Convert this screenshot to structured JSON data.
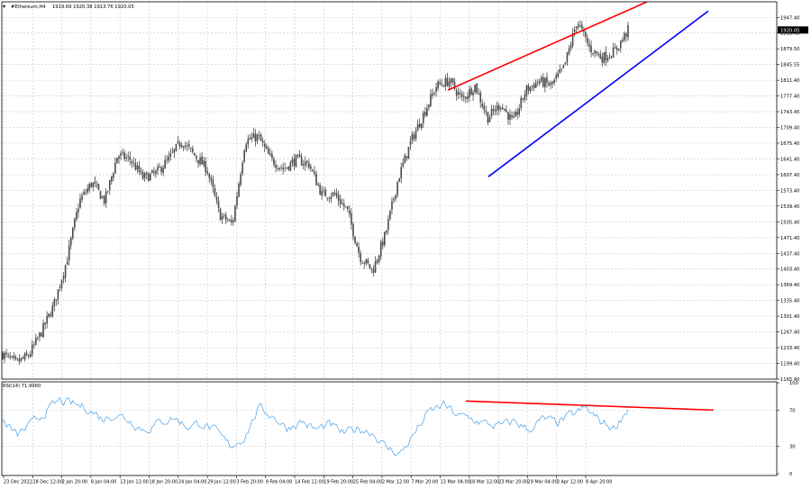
{
  "header": {
    "symbol_label": "#Ethereum,H4",
    "ohlc_label": "1919.69 1920.38 1913.76 1920.05"
  },
  "rsi_label": "RSI(14) 71.9960",
  "current_price_label": "1920.05",
  "colors": {
    "background": "#ffffff",
    "grid": "#c8c8c8",
    "candles": "#4a4a4a",
    "rsi_line": "#4aa0e8",
    "resistance_line": "#ff0000",
    "support_line": "#0000ff",
    "rsi_trendline": "#ff0000",
    "price_tag": "#000000"
  },
  "chart_data": [
    {
      "type": "candlestick",
      "title": "",
      "instrument": "#Ethereum",
      "timeframe": "H4",
      "ylim": [
        1165.4,
        1981.0
      ],
      "y_ticks": [
        "1947.40",
        "1913.45",
        "1879.50",
        "1845.55",
        "1811.40",
        "1777.40",
        "1743.45",
        "1709.40",
        "1675.40",
        "1641.40",
        "1607.40",
        "1573.40",
        "1539.40",
        "1505.40",
        "1471.40",
        "1437.40",
        "1403.40",
        "1369.40",
        "1335.40",
        "1301.40",
        "1267.40",
        "1233.40",
        "1199.40",
        "1165.40"
      ],
      "x_ticks": [
        "23 Dec 2022",
        "28 Dec 12:00",
        "2 Jan 20:00",
        "8 Jan 04:00",
        "13 Jan 12:00",
        "18 Jan 20:00",
        "24 Jan 04:00",
        "29 Jan 12:00",
        "3 Feb 20:00",
        "9 Feb 04:00",
        "14 Feb 12:00",
        "19 Feb 20:00",
        "25 Feb 04:00",
        "2 Mar 12:00",
        "7 Mar 20:00",
        "13 Mar 04:00",
        "18 Mar 12:00",
        "23 Mar 20:00",
        "29 Mar 04:00",
        "3 Apr 12:00",
        "8 Apr 20:00"
      ],
      "grid": true,
      "last_price": 1920.05,
      "price_path": [
        [
          "23 Dec 2022",
          1220
        ],
        [
          "28 Dec 12:00",
          1200
        ],
        [
          "2 Jan 20:00",
          1215
        ],
        [
          "5 Jan",
          1265
        ],
        [
          "8 Jan 04:00",
          1325
        ],
        [
          "10 Jan",
          1420
        ],
        [
          "12 Jan",
          1550
        ],
        [
          "13 Jan 12:00",
          1590
        ],
        [
          "16 Jan",
          1550
        ],
        [
          "18 Jan 20:00",
          1650
        ],
        [
          "21 Jan",
          1640
        ],
        [
          "24 Jan 04:00",
          1600
        ],
        [
          "26 Jan",
          1610
        ],
        [
          "29 Jan 12:00",
          1640
        ],
        [
          "1 Feb",
          1680
        ],
        [
          "3 Feb 20:00",
          1650
        ],
        [
          "6 Feb",
          1620
        ],
        [
          "9 Feb 04:00",
          1520
        ],
        [
          "12 Feb",
          1500
        ],
        [
          "14 Feb 12:00",
          1680
        ],
        [
          "17 Feb",
          1690
        ],
        [
          "19 Feb 20:00",
          1640
        ],
        [
          "22 Feb",
          1620
        ],
        [
          "25 Feb 04:00",
          1640
        ],
        [
          "28 Feb",
          1630
        ],
        [
          "2 Mar 12:00",
          1565
        ],
        [
          "5 Mar",
          1565
        ],
        [
          "7 Mar 20:00",
          1530
        ],
        [
          "9 Mar",
          1430
        ],
        [
          "10 Mar",
          1400
        ],
        [
          "11 Mar",
          1480
        ],
        [
          "12 Mar",
          1600
        ],
        [
          "13 Mar 04:00",
          1680
        ],
        [
          "14 Mar",
          1740
        ],
        [
          "16 Mar",
          1800
        ],
        [
          "18 Mar 12:00",
          1810
        ],
        [
          "20 Mar",
          1770
        ],
        [
          "21 Mar",
          1800
        ],
        [
          "23 Mar 20:00",
          1730
        ],
        [
          "25 Mar",
          1760
        ],
        [
          "27 Mar",
          1720
        ],
        [
          "29 Mar 04:00",
          1790
        ],
        [
          "31 Mar",
          1810
        ],
        [
          "2 Apr",
          1800
        ],
        [
          "3 Apr 12:00",
          1840
        ],
        [
          "5 Apr",
          1940
        ],
        [
          "6 Apr",
          1880
        ],
        [
          "7 Apr",
          1860
        ],
        [
          "8 Apr 20:00",
          1875
        ],
        [
          "10 Apr",
          1920
        ]
      ],
      "trendlines": [
        {
          "color": "red",
          "role": "resistance"
        },
        {
          "color": "blue",
          "role": "support"
        }
      ]
    },
    {
      "type": "line",
      "title": "RSI(14) 71.9960",
      "ylim": [
        0,
        100
      ],
      "y_ticks": [
        "100",
        "70",
        "30",
        "0"
      ],
      "last_value": 71.996,
      "rsi_path": [
        [
          "23 Dec 2022",
          58
        ],
        [
          "28 Dec 12:00",
          42
        ],
        [
          "2 Jan 20:00",
          54
        ],
        [
          "5 Jan",
          68
        ],
        [
          "8 Jan 04:00",
          80
        ],
        [
          "10 Jan",
          76
        ],
        [
          "13 Jan 12:00",
          72
        ],
        [
          "16 Jan",
          60
        ],
        [
          "18 Jan 20:00",
          66
        ],
        [
          "21 Jan",
          58
        ],
        [
          "24 Jan 04:00",
          48
        ],
        [
          "26 Jan",
          56
        ],
        [
          "29 Jan 12:00",
          62
        ],
        [
          "1 Feb",
          52
        ],
        [
          "3 Feb 20:00",
          56
        ],
        [
          "6 Feb",
          46
        ],
        [
          "9 Feb 04:00",
          30
        ],
        [
          "12 Feb",
          40
        ],
        [
          "14 Feb 12:00",
          72
        ],
        [
          "17 Feb",
          64
        ],
        [
          "19 Feb 20:00",
          50
        ],
        [
          "22 Feb",
          58
        ],
        [
          "25 Feb 04:00",
          48
        ],
        [
          "28 Feb",
          54
        ],
        [
          "2 Mar 12:00",
          44
        ],
        [
          "5 Mar",
          50
        ],
        [
          "7 Mar 20:00",
          46
        ],
        [
          "9 Mar",
          28
        ],
        [
          "10 Mar",
          22
        ],
        [
          "11 Mar",
          45
        ],
        [
          "12 Mar",
          68
        ],
        [
          "13 Mar 04:00",
          76
        ],
        [
          "16 Mar",
          64
        ],
        [
          "18 Mar 12:00",
          60
        ],
        [
          "20 Mar",
          55
        ],
        [
          "23 Mar 20:00",
          52
        ],
        [
          "25 Mar",
          58
        ],
        [
          "27 Mar",
          48
        ],
        [
          "29 Mar 04:00",
          60
        ],
        [
          "31 Mar",
          56
        ],
        [
          "3 Apr 12:00",
          64
        ],
        [
          "5 Apr",
          72
        ],
        [
          "6 Apr",
          58
        ],
        [
          "8 Apr 20:00",
          50
        ],
        [
          "10 Apr",
          72
        ]
      ],
      "trendline": {
        "color": "red",
        "role": "bearish divergence line"
      }
    }
  ]
}
